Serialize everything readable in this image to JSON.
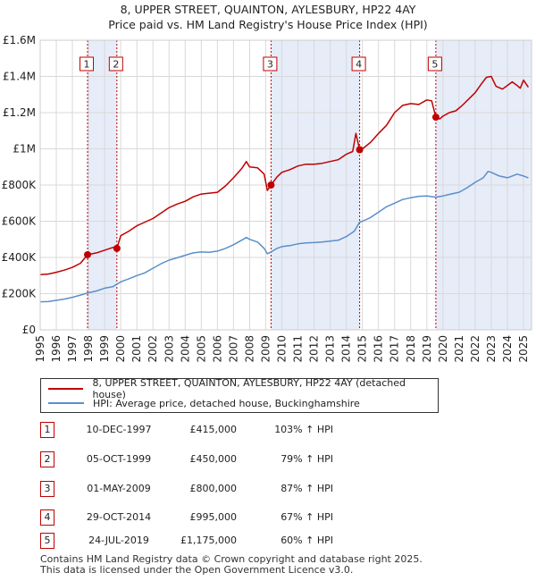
{
  "title_line1": "8, UPPER STREET, QUAINTON, AYLESBURY, HP22 4AY",
  "title_line2": "Price paid vs. HM Land Registry's House Price Index (HPI)",
  "colors": {
    "property": "#c00000",
    "hpi": "#5b8fc9",
    "shade": "#e6ecf8"
  },
  "chart_data": {
    "type": "line",
    "title": "8, UPPER STREET, QUAINTON, AYLESBURY, HP22 4AY",
    "subtitle": "Price paid vs. HM Land Registry's House Price Index (HPI)",
    "xlim": [
      1995.0,
      2025.5
    ],
    "ylim": [
      0,
      1600000
    ],
    "x_ticks": [
      "1995",
      "1996",
      "1997",
      "1998",
      "1999",
      "2000",
      "2001",
      "2002",
      "2003",
      "2004",
      "2005",
      "2006",
      "2007",
      "2008",
      "2009",
      "2010",
      "2011",
      "2012",
      "2013",
      "2014",
      "2015",
      "2016",
      "2017",
      "2018",
      "2019",
      "2020",
      "2021",
      "2022",
      "2023",
      "2024",
      "2025"
    ],
    "y_ticks": [
      {
        "value": 0,
        "label": "£0"
      },
      {
        "value": 200000,
        "label": "£200K"
      },
      {
        "value": 400000,
        "label": "£400K"
      },
      {
        "value": 600000,
        "label": "£600K"
      },
      {
        "value": 800000,
        "label": "£800K"
      },
      {
        "value": 1000000,
        "label": "£1M"
      },
      {
        "value": 1200000,
        "label": "£1.2M"
      },
      {
        "value": 1400000,
        "label": "£1.4M"
      },
      {
        "value": 1600000,
        "label": "£1.6M"
      }
    ],
    "grid": true,
    "legend_placement": "bottom",
    "series": [
      {
        "name": "8, UPPER STREET, QUAINTON, AYLESBURY, HP22 4AY (detached house)",
        "x": [
          1995.0,
          1995.5,
          1996.0,
          1996.5,
          1997.0,
          1997.5,
          1997.94,
          1998.5,
          1999.0,
          1999.5,
          1999.76,
          2000.0,
          2000.5,
          2001.0,
          2001.5,
          2002.0,
          2002.5,
          2003.0,
          2003.5,
          2004.0,
          2004.5,
          2005.0,
          2005.5,
          2006.0,
          2006.5,
          2007.0,
          2007.5,
          2007.8,
          2008.0,
          2008.5,
          2008.9,
          2009.1,
          2009.33,
          2009.7,
          2010.0,
          2010.5,
          2011.0,
          2011.5,
          2012.0,
          2012.5,
          2013.0,
          2013.5,
          2014.0,
          2014.4,
          2014.6,
          2014.83,
          2015.0,
          2015.5,
          2016.0,
          2016.5,
          2017.0,
          2017.5,
          2018.0,
          2018.5,
          2019.0,
          2019.3,
          2019.56,
          2019.8,
          2020.0,
          2020.4,
          2020.8,
          2021.2,
          2021.6,
          2022.0,
          2022.4,
          2022.7,
          2023.0,
          2023.3,
          2023.7,
          2024.0,
          2024.3,
          2024.6,
          2024.8,
          2025.0,
          2025.3
        ],
        "y": [
          305000,
          308000,
          318000,
          330000,
          345000,
          368000,
          415000,
          425000,
          440000,
          455000,
          450000,
          520000,
          545000,
          575000,
          595000,
          615000,
          645000,
          675000,
          695000,
          710000,
          735000,
          750000,
          755000,
          760000,
          795000,
          840000,
          890000,
          930000,
          900000,
          895000,
          860000,
          770000,
          800000,
          845000,
          870000,
          885000,
          905000,
          915000,
          915000,
          920000,
          930000,
          940000,
          970000,
          985000,
          1085000,
          995000,
          1000000,
          1035000,
          1085000,
          1130000,
          1200000,
          1240000,
          1250000,
          1245000,
          1270000,
          1265000,
          1175000,
          1165000,
          1180000,
          1200000,
          1210000,
          1240000,
          1275000,
          1310000,
          1360000,
          1395000,
          1400000,
          1345000,
          1330000,
          1350000,
          1370000,
          1350000,
          1335000,
          1380000,
          1340000
        ]
      },
      {
        "name": "HPI: Average price, detached house, Buckinghamshire",
        "x": [
          1995.0,
          1995.5,
          1996.0,
          1996.5,
          1997.0,
          1997.5,
          1998.0,
          1998.5,
          1999.0,
          1999.5,
          2000.0,
          2000.5,
          2001.0,
          2001.5,
          2002.0,
          2002.5,
          2003.0,
          2003.5,
          2004.0,
          2004.5,
          2005.0,
          2005.5,
          2006.0,
          2006.5,
          2007.0,
          2007.5,
          2007.8,
          2008.0,
          2008.5,
          2008.9,
          2009.1,
          2009.33,
          2009.7,
          2010.0,
          2010.5,
          2011.0,
          2011.5,
          2012.0,
          2012.5,
          2013.0,
          2013.5,
          2014.0,
          2014.5,
          2014.83,
          2015.0,
          2015.5,
          2016.0,
          2016.5,
          2017.0,
          2017.5,
          2018.0,
          2018.5,
          2019.0,
          2019.56,
          2020.0,
          2020.5,
          2021.0,
          2021.5,
          2022.0,
          2022.5,
          2022.8,
          2023.0,
          2023.5,
          2024.0,
          2024.3,
          2024.6,
          2025.0,
          2025.3
        ],
        "y": [
          155000,
          156000,
          163000,
          170000,
          180000,
          192000,
          205000,
          215000,
          230000,
          238000,
          265000,
          282000,
          300000,
          315000,
          340000,
          365000,
          385000,
          398000,
          412000,
          425000,
          430000,
          428000,
          435000,
          450000,
          470000,
          495000,
          510000,
          500000,
          485000,
          450000,
          420000,
          430000,
          450000,
          460000,
          465000,
          475000,
          480000,
          482000,
          485000,
          490000,
          495000,
          515000,
          545000,
          595000,
          600000,
          620000,
          650000,
          680000,
          700000,
          720000,
          730000,
          738000,
          740000,
          733000,
          740000,
          750000,
          760000,
          785000,
          815000,
          840000,
          875000,
          870000,
          850000,
          840000,
          850000,
          860000,
          850000,
          840000
        ]
      }
    ],
    "sale_markers": [
      {
        "label": "1",
        "x": 1997.94,
        "y": 415000
      },
      {
        "label": "2",
        "x": 1999.76,
        "y": 450000
      },
      {
        "label": "3",
        "x": 2009.33,
        "y": 800000
      },
      {
        "label": "4",
        "x": 2014.83,
        "y": 995000
      },
      {
        "label": "5",
        "x": 2019.56,
        "y": 1175000
      }
    ],
    "shaded_ranges": [
      [
        1997.94,
        1999.76
      ],
      [
        2009.33,
        2014.83
      ],
      [
        2019.56,
        2025.5
      ]
    ]
  },
  "legend": {
    "property": "8, UPPER STREET, QUAINTON, AYLESBURY, HP22 4AY (detached house)",
    "hpi": "HPI: Average price, detached house, Buckinghamshire"
  },
  "sales": [
    {
      "num": "1",
      "date": "10-DEC-1997",
      "price": "£415,000",
      "hpi": "103% ↑ HPI"
    },
    {
      "num": "2",
      "date": "05-OCT-1999",
      "price": "£450,000",
      "hpi": "79% ↑ HPI"
    },
    {
      "num": "3",
      "date": "01-MAY-2009",
      "price": "£800,000",
      "hpi": "87% ↑ HPI"
    },
    {
      "num": "4",
      "date": "29-OCT-2014",
      "price": "£995,000",
      "hpi": "67% ↑ HPI"
    },
    {
      "num": "5",
      "date": "24-JUL-2019",
      "price": "£1,175,000",
      "hpi": "60% ↑ HPI"
    }
  ],
  "footer_line1": "Contains HM Land Registry data © Crown copyright and database right 2025.",
  "footer_line2": "This data is licensed under the Open Government Licence v3.0."
}
